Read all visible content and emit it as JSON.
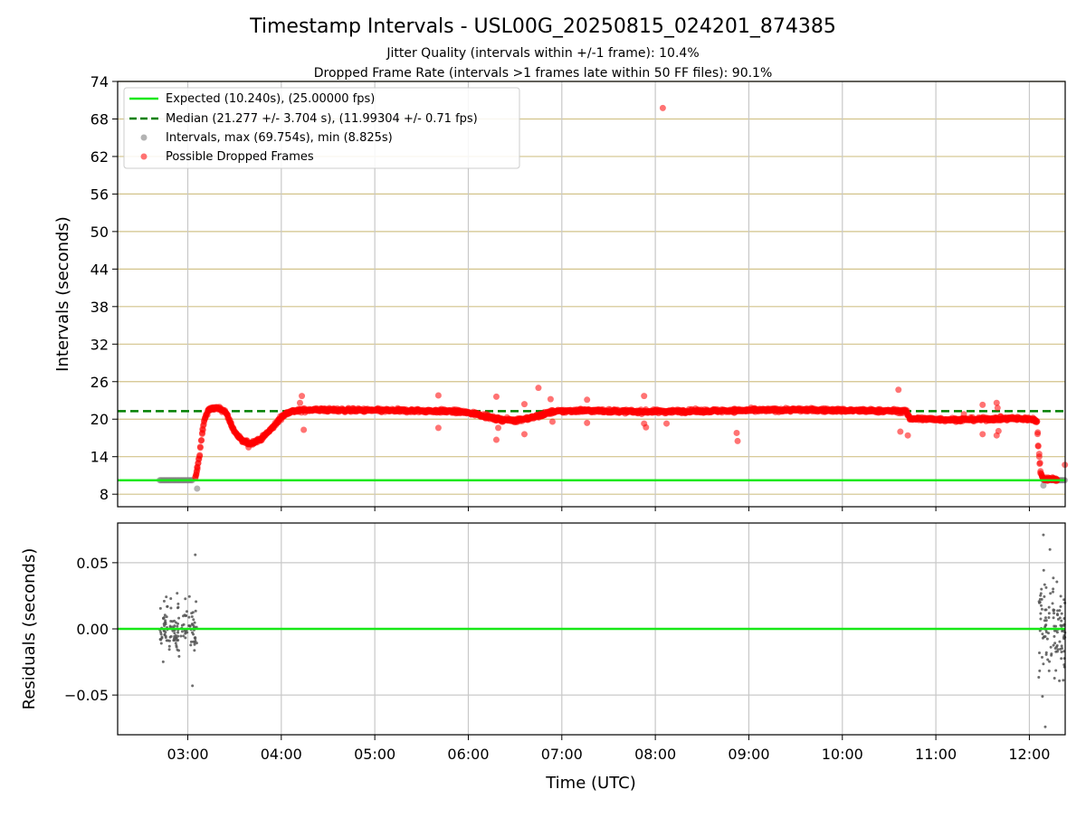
{
  "figure": {
    "title": "Timestamp Intervals - USL00G_20250815_024201_874385",
    "subtitle_1": "Jitter Quality (intervals within +/-1 frame): 10.4%",
    "subtitle_2": "Dropped Frame Rate (intervals >1 frames late within 50 FF files): 90.1%"
  },
  "chart_data": [
    {
      "type": "scatter",
      "panel": "intervals",
      "xlabel": "",
      "ylabel": "Intervals (seconds)",
      "xlim": [
        2.25,
        12.383
      ],
      "ylim": [
        6,
        74
      ],
      "yticks": [
        8,
        14,
        20,
        26,
        32,
        38,
        44,
        50,
        56,
        62,
        68,
        74
      ],
      "ytick_labels": [
        "8",
        "14",
        "20",
        "26",
        "32",
        "38",
        "44",
        "50",
        "56",
        "62",
        "68",
        "74"
      ],
      "grid": "horizontal lines at y ticks (tan), vertical lines at x ticks (gray)",
      "legend_position": "top-left",
      "legend": [
        {
          "label": "Expected (10.240s), (25.00000 fps)",
          "style": "solid line",
          "color": "#18e818"
        },
        {
          "label": "Median (21.277 +/- 3.704 s), (11.99304 +/- 0.71 fps)",
          "style": "dashed line",
          "color": "#008000"
        },
        {
          "label": "Intervals, max (69.754s), min (8.825s)",
          "style": "marker",
          "color": "#808080"
        },
        {
          "label": "Possible Dropped Frames",
          "style": "marker",
          "color": "#ff0000"
        }
      ],
      "expected_value": 10.24,
      "median_value": 21.277,
      "intervals_series": {
        "name": "Intervals, max (69.754s), min (8.825s)",
        "segments": [
          {
            "x_start": 2.7,
            "x_end": 3.05,
            "y": 10.24
          },
          {
            "x_start": 12.15,
            "x_end": 12.383,
            "y": 10.24
          }
        ],
        "points": [
          [
            3.1,
            8.9
          ],
          [
            12.15,
            9.4
          ]
        ]
      },
      "dropped_series": {
        "name": "Possible Dropped Frames",
        "trend": [
          [
            3.08,
            10.6
          ],
          [
            3.1,
            11.8
          ],
          [
            3.13,
            14.5
          ],
          [
            3.15,
            17.5
          ],
          [
            3.18,
            20.0
          ],
          [
            3.22,
            21.5
          ],
          [
            3.3,
            21.8
          ],
          [
            3.4,
            21.3
          ],
          [
            3.5,
            18.0
          ],
          [
            3.58,
            16.5
          ],
          [
            3.67,
            16.1
          ],
          [
            3.78,
            16.8
          ],
          [
            3.9,
            18.5
          ],
          [
            4.0,
            20.3
          ],
          [
            4.08,
            21.2
          ],
          [
            4.3,
            21.5
          ],
          [
            5.0,
            21.4
          ],
          [
            5.7,
            21.3
          ],
          [
            5.9,
            21.2
          ],
          [
            6.1,
            20.8
          ],
          [
            6.3,
            20.0
          ],
          [
            6.5,
            19.8
          ],
          [
            6.7,
            20.3
          ],
          [
            6.9,
            21.2
          ],
          [
            7.2,
            21.4
          ],
          [
            7.8,
            21.2
          ],
          [
            8.5,
            21.3
          ],
          [
            9.5,
            21.5
          ],
          [
            10.0,
            21.4
          ],
          [
            10.6,
            21.3
          ],
          [
            10.68,
            21.3
          ],
          [
            10.72,
            20.1
          ],
          [
            11.2,
            19.9
          ],
          [
            11.8,
            20.1
          ],
          [
            12.05,
            20.0
          ],
          [
            12.08,
            19.5
          ],
          [
            12.1,
            15.0
          ],
          [
            12.12,
            11.5
          ],
          [
            12.15,
            10.5
          ],
          [
            12.3,
            10.4
          ]
        ],
        "outliers": [
          [
            3.1,
            12.3
          ],
          [
            3.65,
            15.5
          ],
          [
            4.2,
            22.6
          ],
          [
            4.22,
            23.7
          ],
          [
            4.24,
            18.3
          ],
          [
            5.68,
            23.8
          ],
          [
            5.68,
            18.6
          ],
          [
            6.3,
            23.6
          ],
          [
            6.3,
            16.7
          ],
          [
            6.32,
            18.6
          ],
          [
            6.6,
            22.4
          ],
          [
            6.6,
            17.6
          ],
          [
            6.75,
            25.0
          ],
          [
            6.88,
            23.2
          ],
          [
            6.9,
            19.6
          ],
          [
            7.27,
            23.1
          ],
          [
            7.27,
            19.4
          ],
          [
            7.88,
            23.7
          ],
          [
            7.88,
            19.3
          ],
          [
            7.9,
            18.7
          ],
          [
            8.08,
            69.754
          ],
          [
            8.12,
            19.3
          ],
          [
            8.87,
            17.8
          ],
          [
            8.88,
            16.5
          ],
          [
            10.6,
            24.7
          ],
          [
            10.62,
            18.0
          ],
          [
            10.7,
            17.4
          ],
          [
            11.3,
            20.8
          ],
          [
            11.5,
            22.3
          ],
          [
            11.5,
            17.6
          ],
          [
            11.65,
            22.6
          ],
          [
            11.66,
            21.8
          ],
          [
            11.65,
            17.4
          ],
          [
            11.67,
            18.1
          ],
          [
            12.38,
            12.7
          ]
        ]
      }
    },
    {
      "type": "scatter",
      "panel": "residuals",
      "xlabel": "Time (UTC)",
      "ylabel": "Residuals (seconds)",
      "xlim": [
        2.25,
        12.383
      ],
      "ylim": [
        -0.08,
        0.08
      ],
      "xticks": [
        3,
        4,
        5,
        6,
        7,
        8,
        9,
        10,
        11,
        12
      ],
      "xtick_labels": [
        "03:00",
        "04:00",
        "05:00",
        "06:00",
        "07:00",
        "08:00",
        "09:00",
        "10:00",
        "11:00",
        "12:00"
      ],
      "yticks": [
        -0.05,
        0.0,
        0.05
      ],
      "ytick_labels": [
        "−0.05",
        "0.00",
        "0.05"
      ],
      "grid": "horizontal and vertical gray lines at ticks",
      "zero_line_color": "#18e818",
      "clusters": [
        {
          "x_start": 2.7,
          "x_end": 3.1,
          "y_min": -0.043,
          "y_max": 0.056,
          "count": 140
        },
        {
          "x_start": 12.1,
          "x_end": 12.383,
          "y_min": -0.074,
          "y_max": 0.071,
          "count": 120
        }
      ],
      "extreme_points": [
        [
          3.08,
          0.056
        ],
        [
          3.05,
          -0.043
        ],
        [
          12.15,
          0.071
        ],
        [
          12.17,
          -0.074
        ],
        [
          12.14,
          -0.051
        ],
        [
          12.22,
          0.06
        ]
      ]
    }
  ]
}
